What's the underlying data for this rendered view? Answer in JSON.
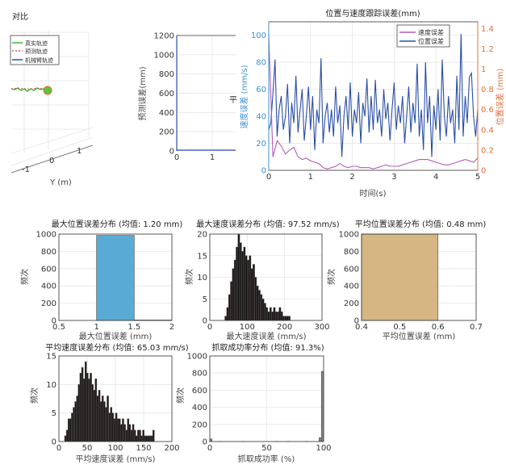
{
  "panel_3d": {
    "title": "对比",
    "legend": [
      "真实轨迹",
      "预测轨迹",
      "机械臂轨迹"
    ],
    "legend_colors": [
      "#3cb43c",
      "#e03c3c",
      "#2a4fa8"
    ],
    "ylabel": "Y (m)",
    "yticks": [
      "-1",
      "0",
      "1"
    ]
  },
  "chart_data": [
    {
      "id": "prediction-error",
      "type": "line",
      "ylabel": "预测误差(mm)",
      "ylim": [
        0,
        1200
      ],
      "yticks": [
        0,
        200,
        400,
        600,
        800,
        1000,
        1200
      ],
      "xticks": [
        0,
        1
      ],
      "clipped_text": "平",
      "color": "#2a4fa8"
    },
    {
      "id": "tracking-error",
      "type": "line",
      "title": "位置与速度跟踪误差(mm)",
      "xlabel": "时间(s)",
      "ylabel": "速度误差 (mm/s)",
      "ylabel_right": "位置误差 (mm)",
      "xlim": [
        0,
        5
      ],
      "ylim": [
        0,
        110
      ],
      "ylim_right": [
        0,
        1.4667
      ],
      "xticks": [
        0,
        1,
        2,
        3,
        4,
        5
      ],
      "yticks": [
        0,
        20,
        40,
        60,
        80,
        100
      ],
      "yticks_right": [
        0,
        0.2,
        0.4,
        0.6,
        0.8,
        1,
        1.2,
        1.4
      ],
      "left_axis_color": "#3d8fcf",
      "right_axis_color": "#e0703c",
      "grid": true,
      "legend_position": "top-right",
      "series": [
        {
          "name": "速度误差",
          "color": "#b45cb4",
          "values": [
            100,
            10,
            22,
            18,
            12,
            15,
            17,
            10,
            8,
            9,
            7,
            6,
            5,
            2,
            1,
            2,
            3,
            5,
            3,
            2,
            3,
            3,
            2,
            2,
            2,
            1,
            2,
            3,
            4,
            3,
            3,
            3,
            4,
            5,
            6,
            7,
            8,
            8,
            8,
            7,
            6,
            5,
            4,
            4,
            5,
            6,
            7,
            8,
            7,
            6,
            9
          ]
        },
        {
          "name": "位置误差",
          "color": "#2a4fa8",
          "values": [
            30,
            35,
            57,
            82,
            25,
            45,
            55,
            30,
            40,
            64,
            20,
            50,
            35,
            70,
            28,
            45,
            60,
            22,
            40,
            62,
            30,
            55,
            15,
            45,
            35,
            83,
            20,
            40,
            50,
            28,
            45,
            25,
            62,
            35,
            48,
            10,
            40,
            55,
            30,
            65,
            25,
            45,
            35,
            58,
            20,
            50,
            40,
            68,
            28,
            55,
            30,
            67,
            35,
            45,
            25,
            60,
            38,
            50,
            22,
            45,
            65,
            30,
            48,
            35,
            55,
            20,
            40,
            62,
            28,
            50,
            35,
            79,
            25,
            45,
            15,
            80,
            35,
            55,
            10,
            48,
            30,
            60,
            22,
            82,
            40,
            25,
            55,
            35,
            45,
            20,
            70,
            30,
            101,
            25,
            55,
            35,
            69,
            72,
            40,
            25,
            45
          ]
        }
      ]
    },
    {
      "id": "max-pos-hist",
      "type": "bar",
      "title": "最大位置误差分布 (均值: 1.20 mm)",
      "xlabel": "最大位置误差 (mm)",
      "ylabel": "频次",
      "xlim": [
        0.5,
        2
      ],
      "ylim": [
        0,
        1000
      ],
      "xticks": [
        0.5,
        1,
        1.5,
        2
      ],
      "yticks": [
        0,
        200,
        400,
        600,
        800,
        1000
      ],
      "bin_start": 1,
      "bin_width": 0.5,
      "counts": [
        985,
        5
      ],
      "color": "#5aaad6"
    },
    {
      "id": "max-vel-hist",
      "type": "bar",
      "title": "最大速度误差分布 (均值: 97.52 mm/s)",
      "xlabel": "最大速度误差 (mm/s)",
      "ylabel": "频次",
      "xlim": [
        0,
        300
      ],
      "ylim": [
        0,
        20
      ],
      "xticks": [
        0,
        100,
        200,
        300
      ],
      "yticks": [
        0,
        5,
        10,
        15,
        20
      ],
      "bin_start": 40,
      "bin_width": 5,
      "counts": [
        1,
        3,
        6,
        9,
        12,
        14,
        17,
        20,
        18,
        16,
        17,
        15,
        14,
        15,
        12,
        13,
        10,
        8,
        7,
        6,
        5,
        4,
        3,
        2,
        3,
        2,
        3,
        2,
        2,
        3,
        2,
        1,
        1,
        1,
        1
      ],
      "color": "#151515"
    },
    {
      "id": "avg-pos-hist",
      "type": "bar",
      "title": "平均位置误差分布 (均值: 0.48 mm)",
      "xlabel": "平均位置误差 (mm)",
      "ylabel": "频次",
      "xlim": [
        0.4,
        0.7
      ],
      "ylim": [
        0,
        1000
      ],
      "xticks": [
        0.4,
        0.5,
        0.6,
        0.7
      ],
      "yticks": [
        0,
        200,
        400,
        600,
        800,
        1000
      ],
      "bin_start": 0.4,
      "bin_width": 0.2,
      "counts": [
        1000
      ],
      "color": "#d6b683"
    },
    {
      "id": "avg-vel-hist",
      "type": "bar",
      "title": "平均速度误差分布 (均值: 65.03 mm/s)",
      "xlabel": "平均速度误差 (mm/s)",
      "ylabel": "频次",
      "xlim": [
        0,
        200
      ],
      "ylim": [
        0,
        15
      ],
      "xticks": [
        0,
        50,
        100,
        150,
        200
      ],
      "yticks": [
        0,
        5,
        10,
        15
      ],
      "bin_start": 10,
      "bin_width": 3,
      "counts": [
        1,
        2,
        4,
        4,
        5,
        6,
        7,
        8,
        10,
        12,
        13,
        11,
        14,
        12,
        11,
        12,
        10,
        9,
        11,
        8,
        9,
        7,
        8,
        7,
        6,
        8,
        5,
        6,
        5,
        4,
        5,
        4,
        4,
        3,
        4,
        3,
        2,
        4,
        3,
        2,
        3,
        2,
        1,
        2,
        2,
        1,
        2,
        1,
        1,
        1,
        1,
        1,
        2
      ],
      "color": "#151515"
    },
    {
      "id": "grasp-success-hist",
      "type": "bar",
      "title": "抓取成功率分布 (均值: 91.3%)",
      "xlabel": "抓取成功率 (%)",
      "ylabel": "频次",
      "xlim": [
        0,
        100
      ],
      "ylim": [
        0,
        1000
      ],
      "xticks": [
        0,
        50,
        100
      ],
      "yticks": [
        0,
        200,
        400,
        600,
        800,
        1000
      ],
      "bin_start": 0,
      "bin_width": 2,
      "counts": [
        30,
        0,
        0,
        0,
        2,
        0,
        0,
        0,
        0,
        0,
        0,
        0,
        0,
        0,
        2,
        0,
        0,
        0,
        0,
        0,
        0,
        0,
        0,
        0,
        0,
        0,
        0,
        0,
        0,
        2,
        0,
        0,
        0,
        0,
        2,
        0,
        0,
        0,
        0,
        0,
        0,
        0,
        2,
        0,
        0,
        0,
        0,
        0,
        45,
        820
      ],
      "color": "#8a8a8a"
    }
  ]
}
